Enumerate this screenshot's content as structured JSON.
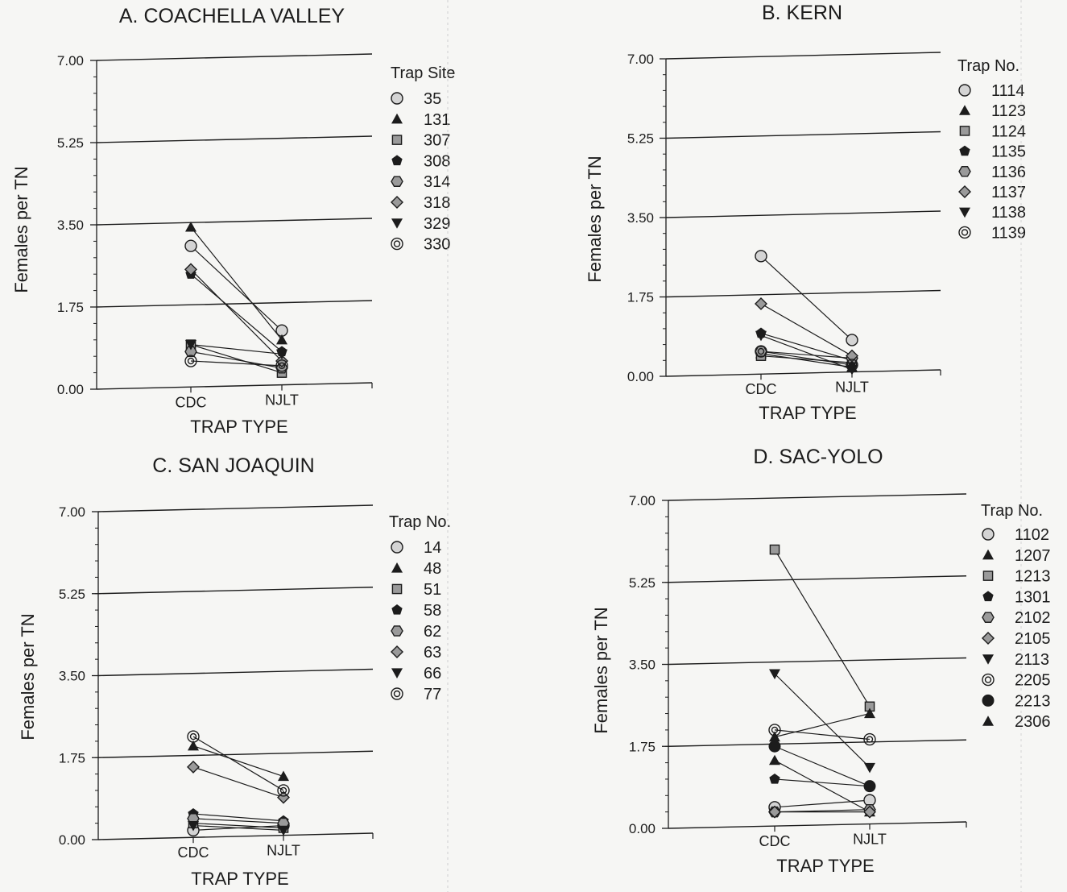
{
  "colors": {
    "ink": "#1c1c1c",
    "paper": "#f6f6f4",
    "marker_fill": "#9a9a9a",
    "marker_light": "#d4d4d4"
  },
  "chart_data": [
    {
      "id": "a",
      "type": "line",
      "title": "A. COACHELLA VALLEY",
      "xlabel": "TRAP TYPE",
      "ylabel": "Females per TN",
      "categories": [
        "CDC",
        "NJLT"
      ],
      "ylim": [
        0,
        7
      ],
      "yticks": [
        "0.00",
        "1.75",
        "3.50",
        "5.25",
        "7.00"
      ],
      "grid": true,
      "legend": {
        "title": "Trap Site",
        "position": "right"
      },
      "series": [
        {
          "name": "35",
          "marker": "circle",
          "values": [
            3.05,
            1.25
          ]
        },
        {
          "name": "131",
          "marker": "triangle",
          "values": [
            3.45,
            1.05
          ]
        },
        {
          "name": "307",
          "marker": "square",
          "values": [
            0.95,
            0.35
          ]
        },
        {
          "name": "308",
          "marker": "pentagon",
          "values": [
            2.45,
            0.8
          ]
        },
        {
          "name": "314",
          "marker": "hexagon",
          "values": [
            0.8,
            0.45
          ]
        },
        {
          "name": "318",
          "marker": "diamond",
          "values": [
            2.55,
            0.6
          ]
        },
        {
          "name": "329",
          "marker": "triangle-down",
          "values": [
            0.95,
            0.75
          ]
        },
        {
          "name": "330",
          "marker": "ring",
          "values": [
            0.6,
            0.5
          ]
        }
      ]
    },
    {
      "id": "b",
      "type": "line",
      "title": "B. KERN",
      "xlabel": "TRAP TYPE",
      "ylabel": "Females per TN",
      "categories": [
        "CDC",
        "NJLT"
      ],
      "ylim": [
        0,
        7
      ],
      "yticks": [
        "0.00",
        "1.75",
        "3.50",
        "5.25",
        "7.00"
      ],
      "grid": true,
      "legend": {
        "title": "Trap No.",
        "position": "right"
      },
      "series": [
        {
          "name": "1114",
          "marker": "circle",
          "values": [
            2.65,
            0.8
          ]
        },
        {
          "name": "1123",
          "marker": "triangle",
          "values": [
            0.5,
            0.2
          ]
        },
        {
          "name": "1124",
          "marker": "square",
          "values": [
            0.45,
            0.3
          ]
        },
        {
          "name": "1135",
          "marker": "pentagon",
          "values": [
            0.95,
            0.35
          ]
        },
        {
          "name": "1136",
          "marker": "hexagon",
          "values": [
            0.55,
            0.4
          ]
        },
        {
          "name": "1137",
          "marker": "diamond",
          "values": [
            1.6,
            0.45
          ]
        },
        {
          "name": "1138",
          "marker": "triangle-down",
          "values": [
            0.9,
            0.15
          ]
        },
        {
          "name": "1139",
          "marker": "ring",
          "values": [
            0.55,
            0.25
          ]
        }
      ]
    },
    {
      "id": "c",
      "type": "line",
      "title": "C. SAN JOAQUIN",
      "xlabel": "TRAP TYPE",
      "ylabel": "Females per TN",
      "categories": [
        "CDC",
        "NJLT"
      ],
      "ylim": [
        0,
        7
      ],
      "yticks": [
        "0.00",
        "1.75",
        "3.50",
        "5.25",
        "7.00"
      ],
      "grid": true,
      "legend": {
        "title": "Trap No.",
        "position": "right"
      },
      "series": [
        {
          "name": "14",
          "marker": "circle",
          "values": [
            0.2,
            0.3
          ]
        },
        {
          "name": "48",
          "marker": "triangle",
          "values": [
            2.0,
            1.35
          ]
        },
        {
          "name": "51",
          "marker": "square",
          "values": [
            0.35,
            0.25
          ]
        },
        {
          "name": "58",
          "marker": "pentagon",
          "values": [
            0.55,
            0.4
          ]
        },
        {
          "name": "62",
          "marker": "hexagon",
          "values": [
            0.45,
            0.35
          ]
        },
        {
          "name": "63",
          "marker": "diamond",
          "values": [
            1.55,
            0.9
          ]
        },
        {
          "name": "66",
          "marker": "triangle-down",
          "values": [
            0.3,
            0.2
          ]
        },
        {
          "name": "77",
          "marker": "ring",
          "values": [
            2.2,
            1.05
          ]
        }
      ]
    },
    {
      "id": "d",
      "type": "line",
      "title": "D. SAC-YOLO",
      "xlabel": "TRAP TYPE",
      "ylabel": "Females per TN",
      "categories": [
        "CDC",
        "NJLT"
      ],
      "ylim": [
        0,
        7
      ],
      "yticks": [
        "0.00",
        "1.75",
        "3.50",
        "5.25",
        "7.00"
      ],
      "grid": true,
      "legend": {
        "title": "Trap No.",
        "position": "right"
      },
      "series": [
        {
          "name": "1102",
          "marker": "circle",
          "values": [
            0.45,
            0.6
          ]
        },
        {
          "name": "1207",
          "marker": "triangle",
          "values": [
            1.45,
            0.35
          ]
        },
        {
          "name": "1213",
          "marker": "square",
          "values": [
            5.95,
            2.6
          ]
        },
        {
          "name": "1301",
          "marker": "pentagon",
          "values": [
            1.05,
            0.9
          ]
        },
        {
          "name": "2102",
          "marker": "hexagon",
          "values": [
            0.35,
            0.4
          ]
        },
        {
          "name": "2105",
          "marker": "diamond",
          "values": [
            0.35,
            0.35
          ]
        },
        {
          "name": "2113",
          "marker": "triangle-down",
          "values": [
            3.3,
            1.3
          ]
        },
        {
          "name": "2205",
          "marker": "ring",
          "values": [
            2.1,
            1.9
          ]
        },
        {
          "name": "2213",
          "marker": "dot",
          "values": [
            1.75,
            0.9
          ]
        },
        {
          "name": "2306",
          "marker": "triangle",
          "values": [
            1.95,
            2.45
          ]
        }
      ]
    }
  ]
}
